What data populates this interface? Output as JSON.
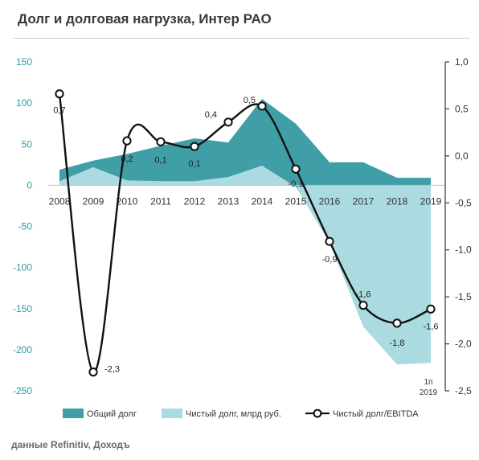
{
  "title": "Долг и долговая нагрузка, Интер РАО",
  "source_note": "данные Refinitiv, Доходъ",
  "chart_data": {
    "type": "area",
    "categories": [
      "2008",
      "2009",
      "2010",
      "2011",
      "2012",
      "2013",
      "2014",
      "2015",
      "2016",
      "2017",
      "2018",
      "2019"
    ],
    "extra_category_label": [
      "1п",
      "2019"
    ],
    "left_axis": {
      "range": [
        -250,
        150
      ],
      "ticks": [
        -250,
        -200,
        -150,
        -100,
        -50,
        0,
        50,
        100,
        150
      ],
      "tick_labels": [
        "-250",
        "-200",
        "-150",
        "-100",
        "-50",
        "0",
        "50",
        "100",
        "150"
      ],
      "color": "#2e9a9e"
    },
    "right_axis": {
      "range": [
        -2.5,
        1.0
      ],
      "ticks": [
        -2.5,
        -2.0,
        -1.5,
        -1.0,
        -0.5,
        0.0,
        0.5,
        1.0
      ],
      "tick_labels": [
        "-2,5",
        "-2,0",
        "-1,5",
        "-1,0",
        "-0,5",
        "0,0",
        "0,5",
        "1,0"
      ]
    },
    "series": [
      {
        "name": "Общий долг",
        "type": "area",
        "axis": "left",
        "color": "#3f9ea6",
        "x": [
          0,
          1,
          2,
          3,
          4,
          5,
          6,
          7,
          8,
          9,
          10,
          11
        ],
        "values": [
          19,
          30,
          38,
          48,
          57,
          52,
          105,
          75,
          28,
          28,
          9,
          9
        ]
      },
      {
        "name": "Чистый долг, млрд руб.",
        "type": "area",
        "axis": "left",
        "color": "#abdbe0",
        "x": [
          0,
          1,
          2,
          3,
          4,
          5,
          6,
          7,
          8,
          9,
          10,
          11
        ],
        "values": [
          5,
          22,
          6,
          5,
          5,
          10,
          24,
          -2,
          -70,
          -172,
          -218,
          -216
        ]
      },
      {
        "name": "Чистый долг/EBITDA",
        "type": "line",
        "axis": "right",
        "color": "#111111",
        "x": [
          0,
          1,
          2,
          3,
          4,
          5,
          6,
          7,
          8,
          9,
          10,
          11
        ],
        "values": [
          0.66,
          -2.3,
          0.16,
          0.15,
          0.1,
          0.36,
          0.53,
          -0.14,
          -0.91,
          -1.59,
          -1.78,
          -1.63
        ]
      }
    ],
    "data_labels": [
      "0,7",
      "-2,3",
      "0,2",
      "0,1",
      "0,1",
      "0,4",
      "0,5",
      "-0,1",
      "-0,9",
      "-1,6",
      "-1,8",
      "-1,6"
    ],
    "legend": {
      "position": "bottom"
    }
  }
}
